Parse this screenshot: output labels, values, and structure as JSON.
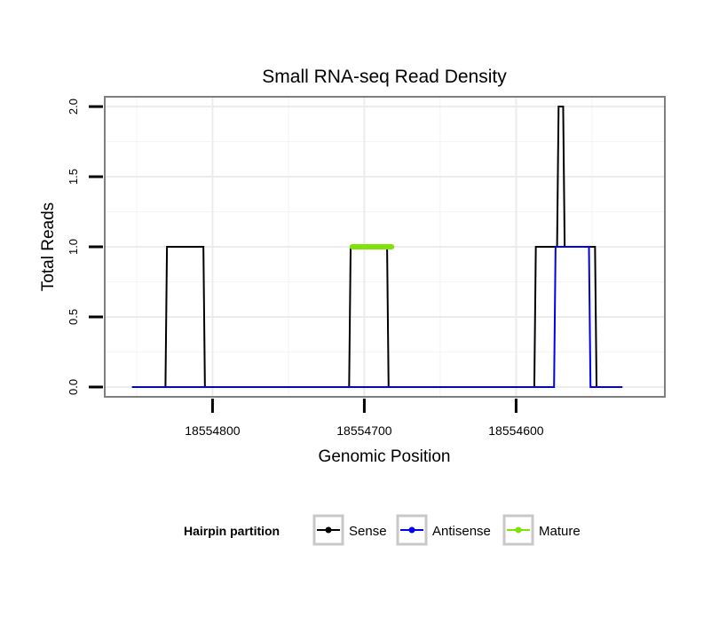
{
  "chart_data": {
    "type": "line",
    "title": "Small RNA-seq Read Density",
    "xlabel": "Genomic Position",
    "ylabel": "Total Reads",
    "x_reversed": true,
    "xlim": [
      18554871,
      18554502
    ],
    "ylim": [
      -0.07,
      2.07
    ],
    "x_ticks": [
      18554800,
      18554700,
      18554600
    ],
    "x_tick_labels": [
      "18554800",
      "18554700",
      "18554600"
    ],
    "y_ticks": [
      0,
      0.5,
      1,
      1.5,
      2
    ],
    "y_tick_labels": [
      "0.0",
      "0.5",
      "1.0",
      "1.5",
      "2.0"
    ],
    "grid": true,
    "legend": {
      "title": "Hairpin partition",
      "position": "bottom",
      "entries": [
        {
          "label": "Sense",
          "color": "#000000"
        },
        {
          "label": "Antisense",
          "color": "#0000ee"
        },
        {
          "label": "Mature",
          "color": "#7fe30a"
        }
      ]
    },
    "series": [
      {
        "name": "Sense",
        "color": "#000000",
        "x": [
          18554853,
          18554831,
          18554830,
          18554806,
          18554805,
          18554710,
          18554709,
          18554685,
          18554684,
          18554588,
          18554587,
          18554573,
          18554572,
          18554569,
          18554568,
          18554548,
          18554547,
          18554530
        ],
        "y": [
          0,
          0,
          1,
          1,
          0,
          0,
          1,
          1,
          0,
          0,
          1,
          1,
          2,
          2,
          1,
          1,
          0,
          0
        ]
      },
      {
        "name": "Antisense",
        "color": "#0000ee",
        "x": [
          18554853,
          18554575,
          18554574,
          18554552,
          18554551,
          18554530
        ],
        "y": [
          0,
          0,
          1,
          1,
          0,
          0
        ]
      },
      {
        "name": "Mature",
        "color": "#7fe30a",
        "x": [
          18554708,
          18554682
        ],
        "y": [
          1,
          1
        ]
      }
    ]
  }
}
